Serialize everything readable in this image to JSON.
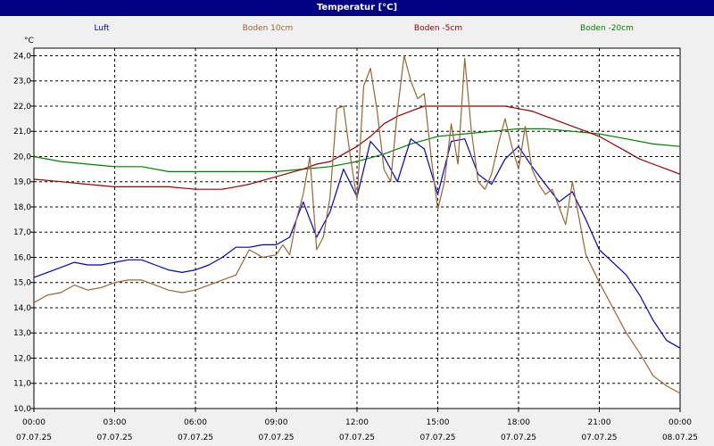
{
  "window": {
    "title": "Temperatur [°C]"
  },
  "chart_data": {
    "type": "line",
    "title": "Temperatur [°C]",
    "ylabel": "°C",
    "xlabel": "",
    "ylim": [
      10.0,
      24.3
    ],
    "xlim": [
      0,
      24
    ],
    "grid": true,
    "legend_position": "top",
    "y_ticks": [
      "10,0",
      "11,0",
      "12,0",
      "13,0",
      "14,0",
      "15,0",
      "16,0",
      "17,0",
      "18,0",
      "19,0",
      "20,0",
      "21,0",
      "22,0",
      "23,0",
      "24,0"
    ],
    "x_ticks": [
      {
        "time": "00:00",
        "date": "07.07.25"
      },
      {
        "time": "03:00",
        "date": "07.07.25"
      },
      {
        "time": "06:00",
        "date": "07.07.25"
      },
      {
        "time": "09:00",
        "date": "07.07.25"
      },
      {
        "time": "12:00",
        "date": "07.07.25"
      },
      {
        "time": "15:00",
        "date": "07.07.25"
      },
      {
        "time": "18:00",
        "date": "07.07.25"
      },
      {
        "time": "21:00",
        "date": "07.07.25"
      },
      {
        "time": "00:00",
        "date": "08.07.25"
      }
    ],
    "series": [
      {
        "name": "Luft",
        "color": "#0000cc",
        "x": [
          0,
          0.5,
          1,
          1.5,
          2,
          2.5,
          3,
          3.5,
          4,
          4.5,
          5,
          5.5,
          6,
          6.5,
          7,
          7.5,
          8,
          8.5,
          9,
          9.5,
          10,
          10.5,
          11,
          11.5,
          12,
          12.5,
          13,
          13.5,
          14,
          14.5,
          15,
          15.5,
          16,
          16.5,
          17,
          17.5,
          18,
          18.5,
          19,
          19.5,
          20,
          20.5,
          21,
          21.5,
          22,
          22.5,
          23,
          23.5,
          24
        ],
        "values": [
          15.2,
          15.4,
          15.6,
          15.8,
          15.7,
          15.7,
          15.8,
          15.9,
          15.9,
          15.7,
          15.5,
          15.4,
          15.5,
          15.7,
          16.0,
          16.4,
          16.4,
          16.5,
          16.5,
          16.8,
          18.2,
          16.8,
          17.8,
          19.5,
          18.4,
          20.6,
          20.0,
          19.0,
          20.7,
          20.3,
          18.5,
          20.6,
          20.7,
          19.3,
          18.9,
          19.9,
          20.4,
          19.6,
          18.9,
          18.2,
          18.6,
          17.5,
          16.3,
          15.8,
          15.3,
          14.5,
          13.5,
          12.7,
          12.4
        ]
      },
      {
        "name": "Boden 10cm",
        "color": "#996633",
        "x": [
          0,
          0.5,
          1,
          1.5,
          2,
          2.5,
          3,
          3.5,
          4,
          4.5,
          5,
          5.5,
          6,
          6.5,
          7,
          7.5,
          8,
          8.5,
          9,
          9.25,
          9.5,
          9.75,
          10,
          10.25,
          10.5,
          10.75,
          11,
          11.25,
          11.5,
          11.75,
          12,
          12.25,
          12.5,
          12.75,
          13,
          13.25,
          13.5,
          13.75,
          14,
          14.25,
          14.5,
          14.75,
          15,
          15.25,
          15.5,
          15.75,
          16,
          16.25,
          16.5,
          16.75,
          17,
          17.25,
          17.5,
          17.75,
          18,
          18.25,
          18.5,
          18.75,
          19,
          19.25,
          19.5,
          19.75,
          20,
          20.5,
          21,
          21.5,
          22,
          22.5,
          23,
          23.5,
          24
        ],
        "values": [
          14.2,
          14.5,
          14.6,
          14.9,
          14.7,
          14.8,
          15.0,
          15.1,
          15.1,
          14.9,
          14.7,
          14.6,
          14.7,
          14.9,
          15.1,
          15.3,
          16.3,
          16.0,
          16.1,
          16.5,
          16.1,
          17.5,
          18.5,
          20.0,
          16.3,
          16.8,
          18.4,
          21.9,
          22.0,
          20.0,
          18.3,
          22.8,
          23.5,
          21.8,
          19.5,
          19.0,
          21.8,
          24.0,
          23.0,
          22.3,
          22.5,
          20.0,
          17.9,
          19.0,
          21.3,
          19.7,
          23.9,
          21.0,
          19.0,
          18.7,
          19.3,
          20.5,
          21.5,
          20.4,
          19.5,
          21.2,
          19.5,
          18.9,
          18.5,
          18.7,
          18.0,
          17.3,
          19.0,
          16.1,
          15.0,
          14.0,
          13.0,
          12.2,
          11.3,
          10.9,
          10.6
        ]
      },
      {
        "name": "Boden -5cm",
        "color": "#990000",
        "x": [
          0,
          1,
          2,
          3,
          4,
          5,
          6,
          7,
          8,
          9,
          10,
          10.5,
          11,
          11.5,
          12,
          12.5,
          13,
          13.5,
          14,
          14.5,
          15,
          15.5,
          16,
          16.5,
          17,
          17.5,
          18,
          18.5,
          19,
          19.5,
          20,
          20.5,
          21,
          21.5,
          22,
          22.5,
          23,
          23.5,
          24
        ],
        "values": [
          19.1,
          19.0,
          18.9,
          18.8,
          18.8,
          18.8,
          18.7,
          18.7,
          18.9,
          19.2,
          19.5,
          19.7,
          19.8,
          20.1,
          20.4,
          20.8,
          21.3,
          21.6,
          21.8,
          22.0,
          22.0,
          22.0,
          22.0,
          22.0,
          22.0,
          22.0,
          21.9,
          21.8,
          21.6,
          21.4,
          21.2,
          21.0,
          20.8,
          20.5,
          20.2,
          19.9,
          19.7,
          19.5,
          19.3
        ]
      },
      {
        "name": "Boden -20cm",
        "color": "#008000",
        "x": [
          0,
          1,
          2,
          3,
          4,
          5,
          6,
          7,
          8,
          9,
          10,
          11,
          12,
          13,
          14,
          15,
          16,
          17,
          18,
          19,
          20,
          21,
          22,
          23,
          24
        ],
        "values": [
          20.0,
          19.8,
          19.7,
          19.6,
          19.6,
          19.4,
          19.4,
          19.4,
          19.4,
          19.4,
          19.5,
          19.6,
          19.8,
          20.1,
          20.5,
          20.8,
          20.9,
          21.0,
          21.1,
          21.1,
          21.0,
          20.9,
          20.7,
          20.5,
          20.4
        ]
      }
    ]
  }
}
